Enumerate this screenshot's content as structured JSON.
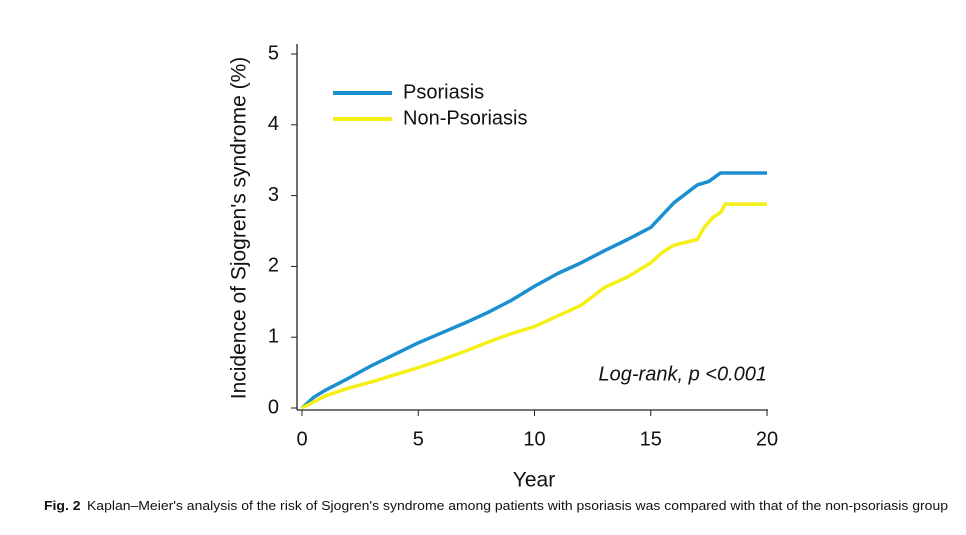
{
  "chart_data": {
    "type": "line",
    "y_label": "Incidence of Sjogren's syndrome (%)",
    "x_label": "Year",
    "annotation": "Log-rank, p <0.001",
    "caption_label": "Fig. 2",
    "caption": "Kaplan–Meier's analysis of the risk of Sjogren's syndrome among patients with psoriasis was compared with that of the non-psoriasis group",
    "xlim": [
      0,
      20
    ],
    "xticks": [
      0,
      5,
      10,
      15,
      20
    ],
    "ylim": [
      0,
      5
    ],
    "yticks": [
      0,
      1,
      2,
      3,
      4,
      5
    ],
    "legend": "top-left",
    "series": [
      {
        "name": "Psoriasis",
        "color": "#1b8fcf",
        "x": [
          0,
          0.5,
          1,
          2,
          3,
          4,
          5,
          6,
          7,
          8,
          9,
          10,
          11,
          12,
          13,
          14,
          15,
          16,
          17,
          17.5,
          18,
          20
        ],
        "values": [
          0,
          0.15,
          0.25,
          0.42,
          0.6,
          0.76,
          0.92,
          1.06,
          1.2,
          1.35,
          1.52,
          1.72,
          1.9,
          2.05,
          2.22,
          2.38,
          2.55,
          2.9,
          3.15,
          3.2,
          3.32,
          3.32
        ]
      },
      {
        "name": "Non-Psoriasis",
        "color": "#f5ef16",
        "x": [
          0,
          1,
          2,
          3,
          4,
          5,
          6,
          7,
          8,
          9,
          10,
          11,
          12,
          13,
          14,
          15,
          15.5,
          16,
          17,
          17.3,
          17.7,
          18,
          18.2,
          20
        ],
        "values": [
          0,
          0.17,
          0.28,
          0.37,
          0.47,
          0.57,
          0.68,
          0.8,
          0.93,
          1.05,
          1.15,
          1.3,
          1.45,
          1.7,
          1.85,
          2.05,
          2.2,
          2.3,
          2.38,
          2.55,
          2.7,
          2.76,
          2.88,
          2.88
        ]
      }
    ]
  }
}
